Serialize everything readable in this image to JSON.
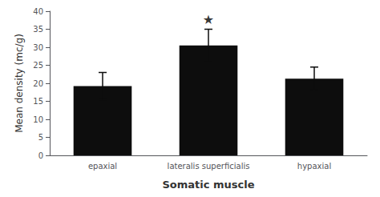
{
  "chart_data": {
    "type": "bar",
    "categories": [
      "epaxial",
      "lateralis superficialis",
      "hypaxial"
    ],
    "values": [
      19.2,
      30.5,
      21.3
    ],
    "errors": [
      3.8,
      4.5,
      3.2
    ],
    "color": "#0d0d0d",
    "xlabel": "Somatic muscle",
    "ylabel": "Mean density (mc/g)",
    "ylim": [
      0,
      40
    ],
    "yticks": [
      0,
      5,
      10,
      15,
      20,
      25,
      30,
      35,
      40
    ],
    "grid": false,
    "annotations": [
      {
        "text": "★",
        "x": "lateralis superficialis",
        "y": 36,
        "color": "black"
      }
    ]
  }
}
